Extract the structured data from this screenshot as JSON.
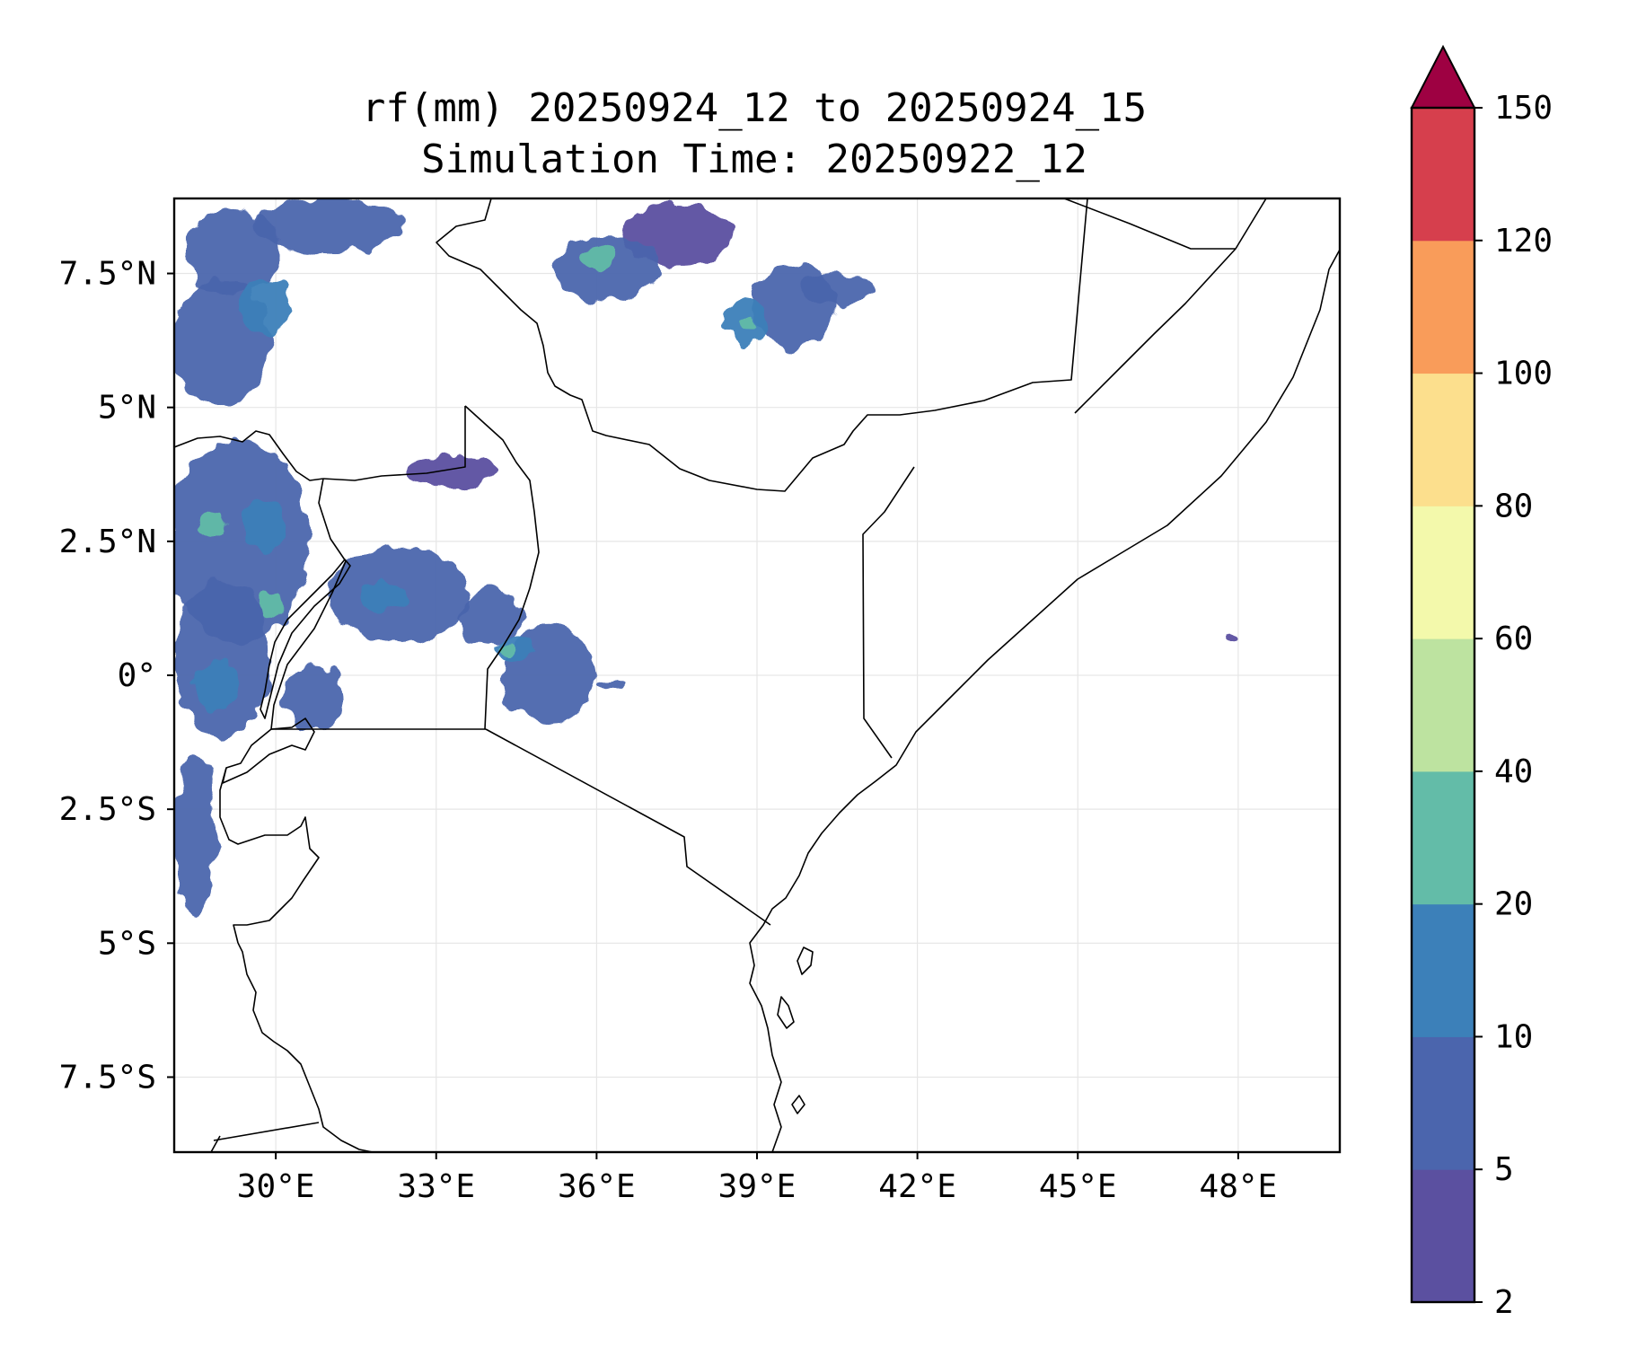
{
  "title": {
    "line1": "rf(mm) 20250924_12 to 20250924_15",
    "line2": "Simulation Time: 20250922_12"
  },
  "map": {
    "lon_range": [
      28.1,
      49.9
    ],
    "lat_range": [
      -8.9,
      8.9
    ],
    "x_ticks": [
      {
        "value": 30,
        "label": "30°E"
      },
      {
        "value": 33,
        "label": "33°E"
      },
      {
        "value": 36,
        "label": "36°E"
      },
      {
        "value": 39,
        "label": "39°E"
      },
      {
        "value": 42,
        "label": "42°E"
      },
      {
        "value": 45,
        "label": "45°E"
      },
      {
        "value": 48,
        "label": "48°E"
      }
    ],
    "y_ticks": [
      {
        "value": 7.5,
        "label": "7.5°N"
      },
      {
        "value": 5,
        "label": "5°N"
      },
      {
        "value": 2.5,
        "label": "2.5°N"
      },
      {
        "value": 0,
        "label": "0°"
      },
      {
        "value": -2.5,
        "label": "2.5°S"
      },
      {
        "value": -5,
        "label": "5°S"
      },
      {
        "value": -7.5,
        "label": "7.5°S"
      }
    ]
  },
  "colorbar": {
    "levels": [
      "2",
      "5",
      "10",
      "20",
      "40",
      "60",
      "80",
      "100",
      "120",
      "150"
    ],
    "colors": [
      "#5b50a0",
      "#4b65ad",
      "#3c80b9",
      "#63bca8",
      "#bde3a0",
      "#f3f9ab",
      "#fcdf8d",
      "#f99c5a",
      "#d63f4d"
    ],
    "extend_color": "#9e0142"
  },
  "chart_data": {
    "type": "heatmap",
    "variable": "rf(mm)",
    "title": "rf(mm) 20250924_12 to 20250924_15",
    "subtitle": "Simulation Time: 20250922_12",
    "xlim": [
      28.1,
      49.9
    ],
    "ylim": [
      -8.9,
      8.9
    ],
    "colorbar_levels": [
      2,
      5,
      10,
      20,
      40,
      60,
      80,
      100,
      120,
      150
    ],
    "rain_cells": [
      {
        "lon": 29.2,
        "lat": 7.9,
        "rx": 0.9,
        "ry": 0.8,
        "level": 1
      },
      {
        "lon": 31.0,
        "lat": 8.4,
        "rx": 1.4,
        "ry": 0.5,
        "level": 1
      },
      {
        "lon": 29.0,
        "lat": 6.2,
        "rx": 0.9,
        "ry": 1.2,
        "level": 1
      },
      {
        "lon": 29.8,
        "lat": 6.9,
        "rx": 0.5,
        "ry": 0.5,
        "level": 2
      },
      {
        "lon": 36.2,
        "lat": 7.6,
        "rx": 1.0,
        "ry": 0.6,
        "level": 1
      },
      {
        "lon": 36.0,
        "lat": 7.75,
        "rx": 0.3,
        "ry": 0.2,
        "level": 3
      },
      {
        "lon": 37.5,
        "lat": 8.2,
        "rx": 1.0,
        "ry": 0.6,
        "level": 0
      },
      {
        "lon": 39.7,
        "lat": 6.9,
        "rx": 0.8,
        "ry": 0.8,
        "level": 1
      },
      {
        "lon": 38.8,
        "lat": 6.6,
        "rx": 0.4,
        "ry": 0.4,
        "level": 2
      },
      {
        "lon": 38.8,
        "lat": 6.55,
        "rx": 0.15,
        "ry": 0.12,
        "level": 3
      },
      {
        "lon": 40.5,
        "lat": 7.2,
        "rx": 0.7,
        "ry": 0.3,
        "level": 1
      },
      {
        "lon": 29.3,
        "lat": 2.5,
        "rx": 1.3,
        "ry": 1.9,
        "level": 1
      },
      {
        "lon": 29.0,
        "lat": 0.3,
        "rx": 0.9,
        "ry": 1.5,
        "level": 1
      },
      {
        "lon": 29.8,
        "lat": 2.8,
        "rx": 0.4,
        "ry": 0.5,
        "level": 2
      },
      {
        "lon": 28.8,
        "lat": 2.8,
        "rx": 0.25,
        "ry": 0.2,
        "level": 3
      },
      {
        "lon": 29.9,
        "lat": 1.3,
        "rx": 0.25,
        "ry": 0.25,
        "level": 3
      },
      {
        "lon": 28.5,
        "lat": -3.0,
        "rx": 0.4,
        "ry": 1.5,
        "level": 1
      },
      {
        "lon": 28.9,
        "lat": -0.2,
        "rx": 0.4,
        "ry": 0.5,
        "level": 2
      },
      {
        "lon": 32.3,
        "lat": 1.5,
        "rx": 1.3,
        "ry": 0.9,
        "level": 1
      },
      {
        "lon": 32.0,
        "lat": 1.5,
        "rx": 0.4,
        "ry": 0.3,
        "level": 2
      },
      {
        "lon": 34.0,
        "lat": 1.1,
        "rx": 0.6,
        "ry": 0.5,
        "level": 1
      },
      {
        "lon": 35.1,
        "lat": 0.0,
        "rx": 0.9,
        "ry": 0.9,
        "level": 1
      },
      {
        "lon": 34.5,
        "lat": 0.5,
        "rx": 0.35,
        "ry": 0.25,
        "level": 2
      },
      {
        "lon": 34.35,
        "lat": 0.5,
        "rx": 0.12,
        "ry": 0.1,
        "level": 3
      },
      {
        "lon": 36.3,
        "lat": -0.2,
        "rx": 0.25,
        "ry": 0.12,
        "level": 1
      },
      {
        "lon": 30.7,
        "lat": -0.4,
        "rx": 0.6,
        "ry": 0.6,
        "level": 1
      },
      {
        "lon": 33.3,
        "lat": 3.8,
        "rx": 0.8,
        "ry": 0.3,
        "level": 0
      },
      {
        "lon": 47.9,
        "lat": 0.7,
        "rx": 0.1,
        "ry": 0.1,
        "level": 0
      }
    ]
  }
}
